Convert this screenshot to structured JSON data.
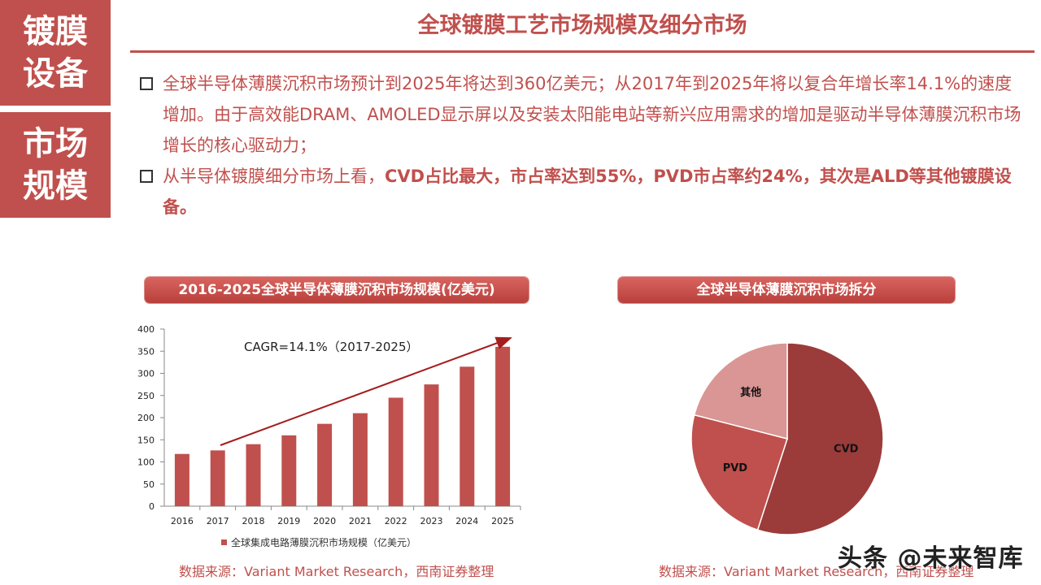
{
  "sidebar": {
    "block1": {
      "line1": "镀膜",
      "line2": "设备"
    },
    "block2": {
      "line1": "市场",
      "line2": "规模"
    }
  },
  "page_title": "全球镀膜工艺市场规模及细分市场",
  "bullets": {
    "b1": "全球半导体薄膜沉积市场预计到2025年将达到360亿美元；从2017年到2025年将以复合年增长率14.1%的速度增加。由于高效能DRAM、AMOLED显示屏以及安装太阳能电站等新兴应用需求的增加是驱动半导体薄膜沉积市场增长的核心驱动力；",
    "b2_prefix": "从半导体镀膜细分市场上看，",
    "b2_bold": "CVD占比最大，市占率达到55%，PVD市占率约24%，其次是ALD等其他镀膜设备。"
  },
  "bar_chart_header": "2016-2025全球半导体薄膜沉积市场规模(亿美元)",
  "pie_chart_header": "全球半导体薄膜沉积市场拆分",
  "sources": {
    "left": "数据来源：Variant Market Research，西南证券整理",
    "right": "数据来源：Variant Market Research，西南证券整理"
  },
  "watermark": "头条 @未来智库",
  "colors": {
    "accent": "#c0504d",
    "bar": "#c0504d",
    "pie_cvd": "#9b3c3a",
    "pie_pvd": "#c0504d",
    "pie_other": "#d99694"
  },
  "chart_data": [
    {
      "type": "bar",
      "title": "2016-2025全球半导体薄膜沉积市场规模(亿美元)",
      "categories": [
        "2016",
        "2017",
        "2018",
        "2019",
        "2020",
        "2021",
        "2022",
        "2023",
        "2024",
        "2025"
      ],
      "series": [
        {
          "name": "全球集成电路薄膜沉积市场规模（亿美元）",
          "values": [
            118,
            126,
            140,
            160,
            186,
            210,
            245,
            275,
            315,
            360
          ]
        }
      ],
      "ylim": [
        0,
        400
      ],
      "yticks": [
        0,
        50,
        100,
        150,
        200,
        250,
        300,
        350,
        400
      ],
      "annotation": "CAGR=14.1%（2017-2025）",
      "legend_position": "bottom",
      "grid": false
    },
    {
      "type": "pie",
      "title": "全球半导体薄膜沉积市场拆分",
      "labels": [
        "CVD",
        "PVD",
        "其他"
      ],
      "values": [
        55,
        24,
        21
      ],
      "legend_position": "none"
    }
  ]
}
